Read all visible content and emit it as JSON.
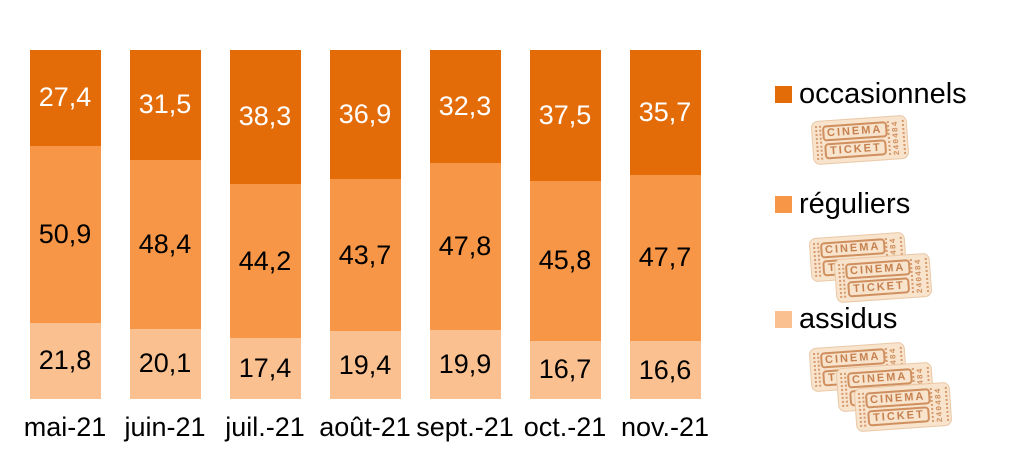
{
  "chart_data": {
    "type": "bar",
    "subtype": "stacked-percentage",
    "title": "",
    "xlabel": "",
    "ylabel": "",
    "ylim": [
      0,
      100
    ],
    "grid": false,
    "legend_position": "right",
    "value_format": "comma-decimal",
    "categories": [
      "mai-21",
      "juin-21",
      "juil.-21",
      "août-21",
      "sept.-21",
      "oct.-21",
      "nov.-21"
    ],
    "series": [
      {
        "name": "occasionnels",
        "color": "#E36C09",
        "label_color": "#FFFFFF",
        "values": [
          27.4,
          31.5,
          38.3,
          36.9,
          32.3,
          37.5,
          35.7
        ]
      },
      {
        "name": "réguliers",
        "color": "#F79646",
        "label_color": "#000000",
        "values": [
          50.9,
          48.4,
          44.2,
          43.7,
          47.8,
          45.8,
          47.7
        ]
      },
      {
        "name": "assidus",
        "color": "#FAC090",
        "label_color": "#000000",
        "values": [
          21.8,
          20.1,
          17.4,
          19.4,
          19.9,
          16.7,
          16.6
        ]
      }
    ]
  },
  "legend": {
    "items": [
      {
        "label": "occasionnels",
        "color": "#E36C09",
        "ticket_count": 1
      },
      {
        "label": "réguliers",
        "color": "#F79646",
        "ticket_count": 2
      },
      {
        "label": "assidus",
        "color": "#FAC090",
        "ticket_count": 3
      }
    ],
    "ticket": {
      "line1": "CINEMA",
      "line2": "TICKET",
      "serial": "240484"
    }
  }
}
